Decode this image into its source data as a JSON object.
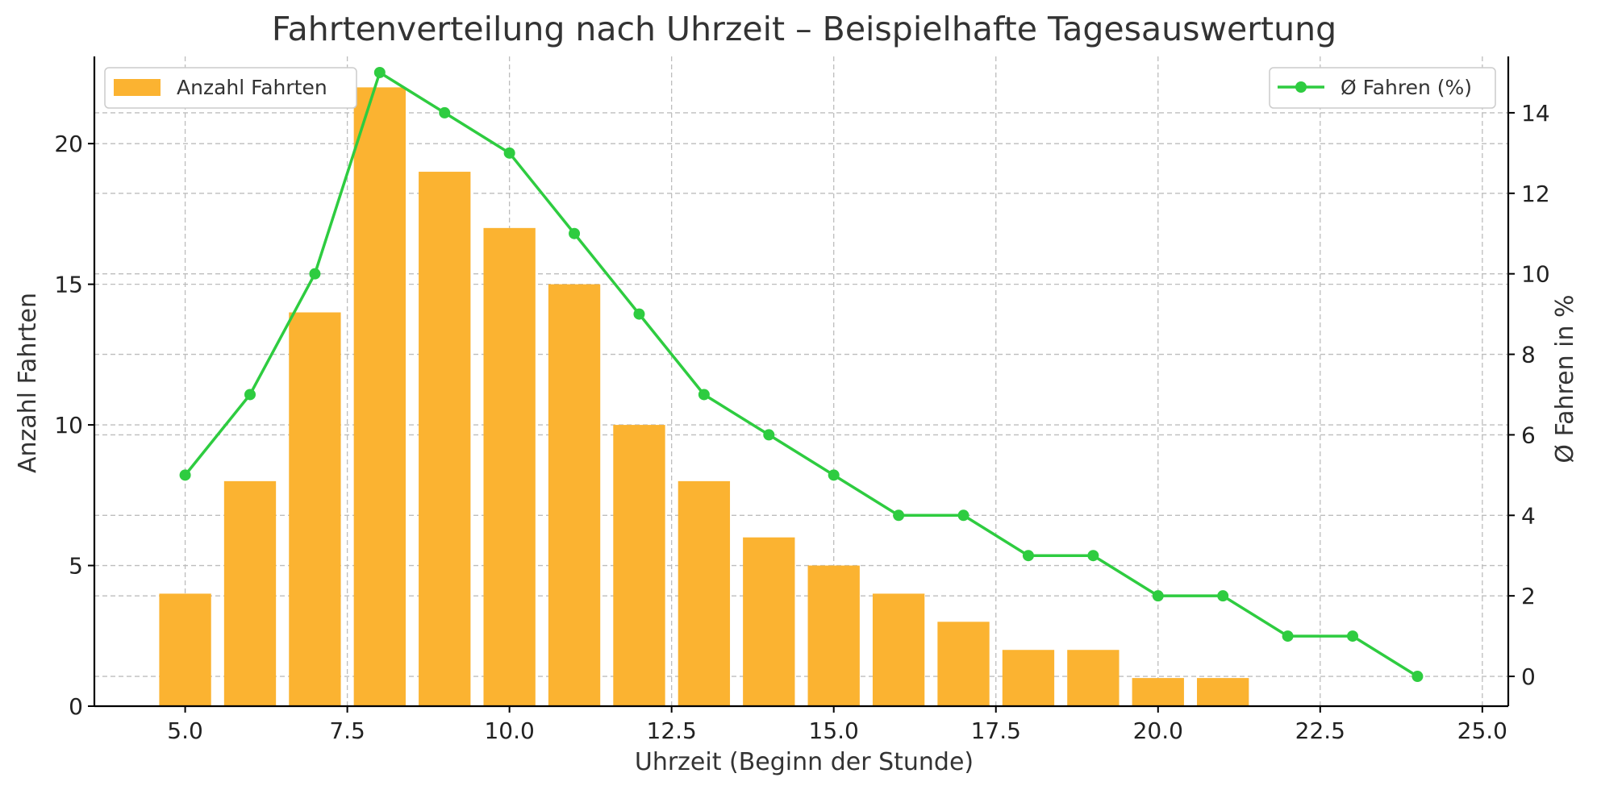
{
  "chart_data": {
    "type": "bar",
    "title": "Fahrtenverteilung nach Uhrzeit – Beispielhafte Tagesauswertung",
    "xlabel": "Uhrzeit (Beginn der Stunde)",
    "ylabel": "Anzahl Fahrten",
    "y2label": "Ø Fahren in %",
    "xlim": [
      3.6,
      25.4
    ],
    "ylim": [
      0,
      23.1
    ],
    "y2lim": [
      -0.74,
      15.4
    ],
    "xticks": [
      5.0,
      7.5,
      10.0,
      12.5,
      15.0,
      17.5,
      20.0,
      22.5,
      25.0
    ],
    "xtick_labels": [
      "5.0",
      "7.5",
      "10.0",
      "12.5",
      "15.0",
      "17.5",
      "20.0",
      "22.5",
      "25.0"
    ],
    "yticks": [
      0,
      5,
      10,
      15,
      20
    ],
    "ytick_labels": [
      "0",
      "5",
      "10",
      "15",
      "20"
    ],
    "y2ticks": [
      0,
      2,
      4,
      6,
      8,
      10,
      12,
      14
    ],
    "y2tick_labels": [
      "0",
      "2",
      "4",
      "6",
      "8",
      "10",
      "12",
      "14"
    ],
    "grid": true,
    "series": [
      {
        "name": "Anzahl Fahrten",
        "type": "bar",
        "axis": "left",
        "color": "#FBB331",
        "x": [
          5,
          6,
          7,
          8,
          9,
          10,
          11,
          12,
          13,
          14,
          15,
          16,
          17,
          18,
          19,
          20,
          21
        ],
        "values": [
          4,
          8,
          14,
          22,
          19,
          17,
          15,
          10,
          8,
          6,
          5,
          4,
          3,
          2,
          2,
          1,
          1
        ]
      },
      {
        "name": "Ø Fahren (%)",
        "type": "line",
        "axis": "right",
        "color": "#2ECC40",
        "marker": "circle",
        "x": [
          5,
          6,
          7,
          8,
          9,
          10,
          11,
          12,
          13,
          14,
          15,
          16,
          17,
          18,
          19,
          20,
          21,
          22,
          23,
          24
        ],
        "values": [
          5,
          7,
          10,
          15,
          14,
          13,
          11,
          9,
          7,
          6,
          5,
          4,
          4,
          3,
          3,
          2,
          2,
          1,
          1,
          0
        ]
      }
    ],
    "legend": [
      {
        "label": "Anzahl Fahrten",
        "placement": "top-left"
      },
      {
        "label": "Ø Fahren (%)",
        "placement": "top-right"
      }
    ]
  }
}
